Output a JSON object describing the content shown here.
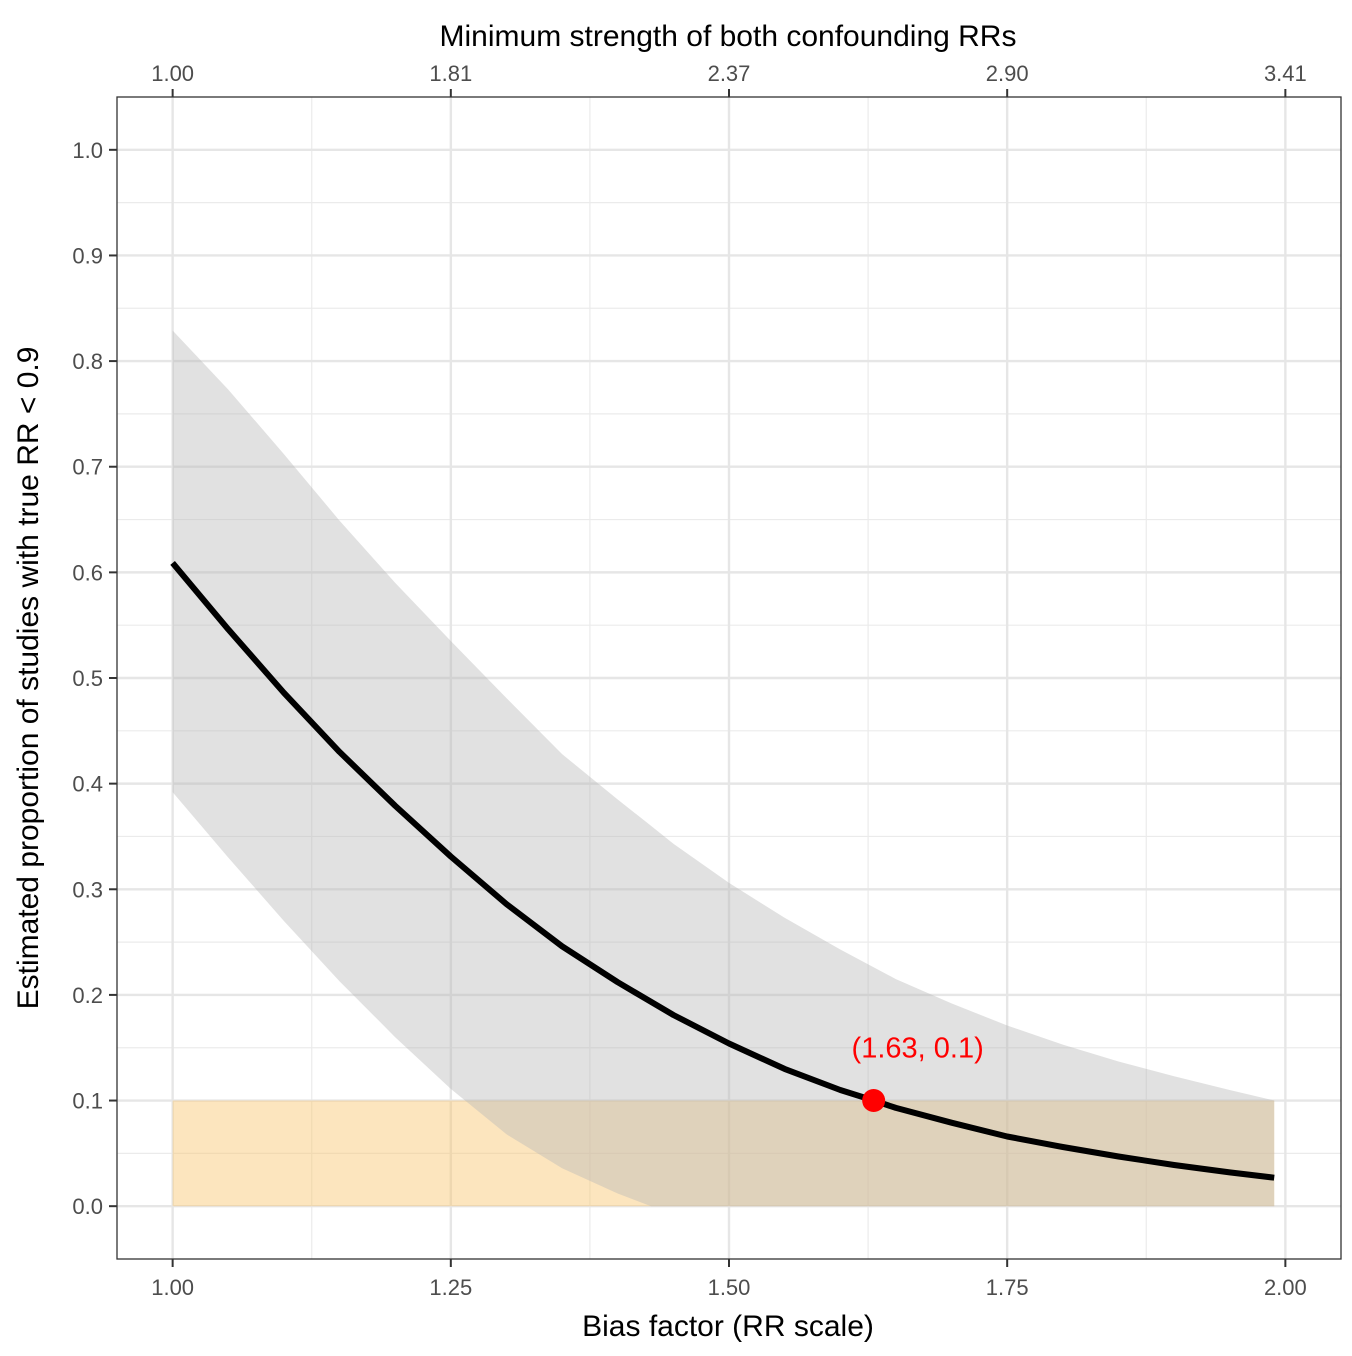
{
  "chart_data": {
    "type": "line",
    "title": "",
    "xlabel": "Bias factor (RR scale)",
    "ylabel": "Estimated proportion of studies with true RR < 0.9",
    "top_axis_label": "Minimum strength of both confounding RRs",
    "xlim": [
      0.95,
      2.05
    ],
    "ylim": [
      -0.05,
      1.05
    ],
    "x_ticks": [
      1.0,
      1.25,
      1.5,
      1.75,
      2.0
    ],
    "x_tick_labels": [
      "1.00",
      "1.25",
      "1.50",
      "1.75",
      "2.00"
    ],
    "x_minor_ticks": [
      1.125,
      1.375,
      1.625,
      1.875
    ],
    "y_ticks": [
      0.0,
      0.1,
      0.2,
      0.3,
      0.4,
      0.5,
      0.6,
      0.7,
      0.8,
      0.9,
      1.0
    ],
    "y_tick_labels": [
      "0.0",
      "0.1",
      "0.2",
      "0.3",
      "0.4",
      "0.5",
      "0.6",
      "0.7",
      "0.8",
      "0.9",
      "1.0"
    ],
    "top_ticks": [
      {
        "x": 1.0,
        "label": "1.00"
      },
      {
        "x": 1.25,
        "label": "1.81"
      },
      {
        "x": 1.5,
        "label": "2.37"
      },
      {
        "x": 1.75,
        "label": "2.90"
      },
      {
        "x": 2.0,
        "label": "3.41"
      }
    ],
    "grid": true,
    "series": [
      {
        "x": [
          1.0,
          1.05,
          1.1,
          1.15,
          1.2,
          1.25,
          1.3,
          1.35,
          1.4,
          1.45,
          1.5,
          1.55,
          1.6,
          1.63,
          1.65,
          1.7,
          1.75,
          1.8,
          1.85,
          1.9,
          1.95,
          1.99
        ],
        "y": [
          0.609,
          0.546,
          0.486,
          0.43,
          0.379,
          0.331,
          0.286,
          0.246,
          0.212,
          0.181,
          0.154,
          0.13,
          0.11,
          0.1,
          0.093,
          0.079,
          0.066,
          0.056,
          0.047,
          0.039,
          0.032,
          0.027
        ],
        "color": "#000000"
      }
    ],
    "confidence_band": {
      "x": [
        1.0,
        1.05,
        1.1,
        1.15,
        1.2,
        1.25,
        1.3,
        1.35,
        1.4,
        1.43,
        1.45,
        1.5,
        1.55,
        1.6,
        1.65,
        1.7,
        1.75,
        1.8,
        1.85,
        1.9,
        1.95,
        1.99
      ],
      "lower": [
        0.392,
        0.33,
        0.27,
        0.213,
        0.16,
        0.111,
        0.068,
        0.036,
        0.012,
        0.0,
        0.0,
        0.0,
        0.0,
        0.0,
        0.0,
        0.0,
        0.0,
        0.0,
        0.0,
        0.0,
        0.0,
        0.0
      ],
      "upper": [
        0.829,
        0.773,
        0.712,
        0.649,
        0.59,
        0.535,
        0.481,
        0.428,
        0.385,
        0.36,
        0.343,
        0.306,
        0.273,
        0.243,
        0.215,
        0.192,
        0.171,
        0.153,
        0.137,
        0.123,
        0.11,
        0.1
      ],
      "color": "#c8c8c8"
    },
    "threshold_band": {
      "x": [
        1.0,
        1.99
      ],
      "y": [
        0.0,
        0.1
      ],
      "color": "#f9c66e"
    },
    "highlight_point": {
      "x": 1.63,
      "y": 0.1,
      "color": "#ff0000"
    },
    "annotation": {
      "text": "(1.63, 0.1)",
      "x": 1.63,
      "y": 0.15,
      "color": "#ff0000"
    }
  }
}
